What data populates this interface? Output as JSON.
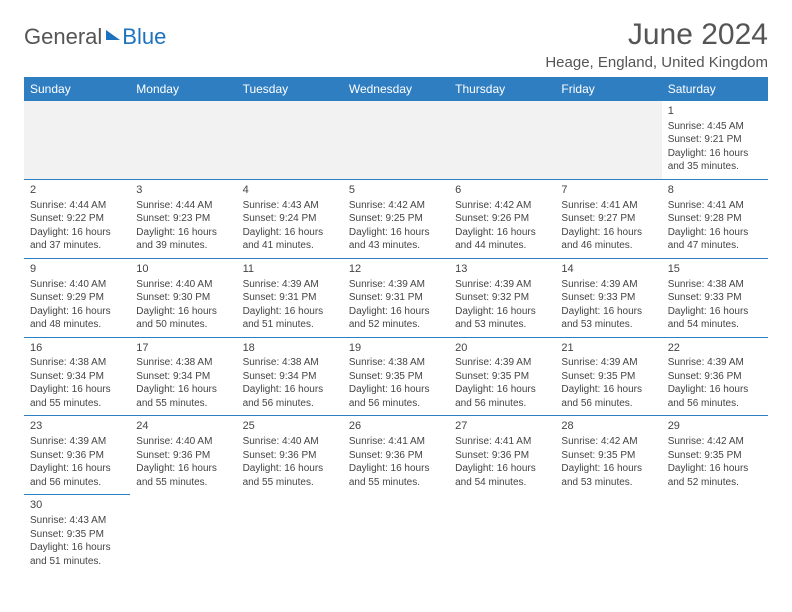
{
  "logo": {
    "general": "General",
    "blue": "Blue"
  },
  "title": "June 2024",
  "location": "Heage, England, United Kingdom",
  "headers": [
    "Sunday",
    "Monday",
    "Tuesday",
    "Wednesday",
    "Thursday",
    "Friday",
    "Saturday"
  ],
  "colors": {
    "header_bg": "#2f7ec2",
    "accent": "#1e73be"
  },
  "weeks": [
    [
      null,
      null,
      null,
      null,
      null,
      null,
      {
        "n": "1",
        "sr": "Sunrise: 4:45 AM",
        "ss": "Sunset: 9:21 PM",
        "d1": "Daylight: 16 hours",
        "d2": "and 35 minutes."
      }
    ],
    [
      {
        "n": "2",
        "sr": "Sunrise: 4:44 AM",
        "ss": "Sunset: 9:22 PM",
        "d1": "Daylight: 16 hours",
        "d2": "and 37 minutes."
      },
      {
        "n": "3",
        "sr": "Sunrise: 4:44 AM",
        "ss": "Sunset: 9:23 PM",
        "d1": "Daylight: 16 hours",
        "d2": "and 39 minutes."
      },
      {
        "n": "4",
        "sr": "Sunrise: 4:43 AM",
        "ss": "Sunset: 9:24 PM",
        "d1": "Daylight: 16 hours",
        "d2": "and 41 minutes."
      },
      {
        "n": "5",
        "sr": "Sunrise: 4:42 AM",
        "ss": "Sunset: 9:25 PM",
        "d1": "Daylight: 16 hours",
        "d2": "and 43 minutes."
      },
      {
        "n": "6",
        "sr": "Sunrise: 4:42 AM",
        "ss": "Sunset: 9:26 PM",
        "d1": "Daylight: 16 hours",
        "d2": "and 44 minutes."
      },
      {
        "n": "7",
        "sr": "Sunrise: 4:41 AM",
        "ss": "Sunset: 9:27 PM",
        "d1": "Daylight: 16 hours",
        "d2": "and 46 minutes."
      },
      {
        "n": "8",
        "sr": "Sunrise: 4:41 AM",
        "ss": "Sunset: 9:28 PM",
        "d1": "Daylight: 16 hours",
        "d2": "and 47 minutes."
      }
    ],
    [
      {
        "n": "9",
        "sr": "Sunrise: 4:40 AM",
        "ss": "Sunset: 9:29 PM",
        "d1": "Daylight: 16 hours",
        "d2": "and 48 minutes."
      },
      {
        "n": "10",
        "sr": "Sunrise: 4:40 AM",
        "ss": "Sunset: 9:30 PM",
        "d1": "Daylight: 16 hours",
        "d2": "and 50 minutes."
      },
      {
        "n": "11",
        "sr": "Sunrise: 4:39 AM",
        "ss": "Sunset: 9:31 PM",
        "d1": "Daylight: 16 hours",
        "d2": "and 51 minutes."
      },
      {
        "n": "12",
        "sr": "Sunrise: 4:39 AM",
        "ss": "Sunset: 9:31 PM",
        "d1": "Daylight: 16 hours",
        "d2": "and 52 minutes."
      },
      {
        "n": "13",
        "sr": "Sunrise: 4:39 AM",
        "ss": "Sunset: 9:32 PM",
        "d1": "Daylight: 16 hours",
        "d2": "and 53 minutes."
      },
      {
        "n": "14",
        "sr": "Sunrise: 4:39 AM",
        "ss": "Sunset: 9:33 PM",
        "d1": "Daylight: 16 hours",
        "d2": "and 53 minutes."
      },
      {
        "n": "15",
        "sr": "Sunrise: 4:38 AM",
        "ss": "Sunset: 9:33 PM",
        "d1": "Daylight: 16 hours",
        "d2": "and 54 minutes."
      }
    ],
    [
      {
        "n": "16",
        "sr": "Sunrise: 4:38 AM",
        "ss": "Sunset: 9:34 PM",
        "d1": "Daylight: 16 hours",
        "d2": "and 55 minutes."
      },
      {
        "n": "17",
        "sr": "Sunrise: 4:38 AM",
        "ss": "Sunset: 9:34 PM",
        "d1": "Daylight: 16 hours",
        "d2": "and 55 minutes."
      },
      {
        "n": "18",
        "sr": "Sunrise: 4:38 AM",
        "ss": "Sunset: 9:34 PM",
        "d1": "Daylight: 16 hours",
        "d2": "and 56 minutes."
      },
      {
        "n": "19",
        "sr": "Sunrise: 4:38 AM",
        "ss": "Sunset: 9:35 PM",
        "d1": "Daylight: 16 hours",
        "d2": "and 56 minutes."
      },
      {
        "n": "20",
        "sr": "Sunrise: 4:39 AM",
        "ss": "Sunset: 9:35 PM",
        "d1": "Daylight: 16 hours",
        "d2": "and 56 minutes."
      },
      {
        "n": "21",
        "sr": "Sunrise: 4:39 AM",
        "ss": "Sunset: 9:35 PM",
        "d1": "Daylight: 16 hours",
        "d2": "and 56 minutes."
      },
      {
        "n": "22",
        "sr": "Sunrise: 4:39 AM",
        "ss": "Sunset: 9:36 PM",
        "d1": "Daylight: 16 hours",
        "d2": "and 56 minutes."
      }
    ],
    [
      {
        "n": "23",
        "sr": "Sunrise: 4:39 AM",
        "ss": "Sunset: 9:36 PM",
        "d1": "Daylight: 16 hours",
        "d2": "and 56 minutes."
      },
      {
        "n": "24",
        "sr": "Sunrise: 4:40 AM",
        "ss": "Sunset: 9:36 PM",
        "d1": "Daylight: 16 hours",
        "d2": "and 55 minutes."
      },
      {
        "n": "25",
        "sr": "Sunrise: 4:40 AM",
        "ss": "Sunset: 9:36 PM",
        "d1": "Daylight: 16 hours",
        "d2": "and 55 minutes."
      },
      {
        "n": "26",
        "sr": "Sunrise: 4:41 AM",
        "ss": "Sunset: 9:36 PM",
        "d1": "Daylight: 16 hours",
        "d2": "and 55 minutes."
      },
      {
        "n": "27",
        "sr": "Sunrise: 4:41 AM",
        "ss": "Sunset: 9:36 PM",
        "d1": "Daylight: 16 hours",
        "d2": "and 54 minutes."
      },
      {
        "n": "28",
        "sr": "Sunrise: 4:42 AM",
        "ss": "Sunset: 9:35 PM",
        "d1": "Daylight: 16 hours",
        "d2": "and 53 minutes."
      },
      {
        "n": "29",
        "sr": "Sunrise: 4:42 AM",
        "ss": "Sunset: 9:35 PM",
        "d1": "Daylight: 16 hours",
        "d2": "and 52 minutes."
      }
    ],
    [
      {
        "n": "30",
        "sr": "Sunrise: 4:43 AM",
        "ss": "Sunset: 9:35 PM",
        "d1": "Daylight: 16 hours",
        "d2": "and 51 minutes."
      },
      null,
      null,
      null,
      null,
      null,
      null
    ]
  ]
}
